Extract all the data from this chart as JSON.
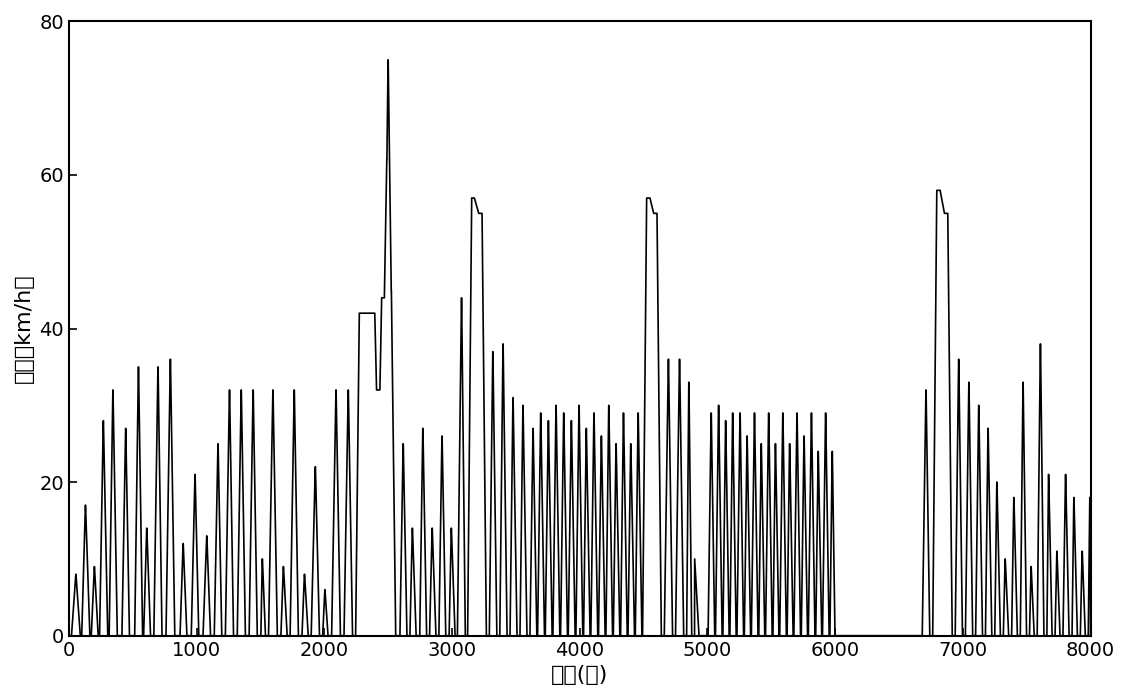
{
  "title": "",
  "xlabel": "时间(秒)",
  "ylabel": "速度（km/h）",
  "xlim": [
    0,
    8000
  ],
  "ylim": [
    0,
    80
  ],
  "xticks": [
    0,
    1000,
    2000,
    3000,
    4000,
    5000,
    6000,
    7000,
    8000
  ],
  "yticks": [
    0,
    20,
    40,
    60,
    80
  ],
  "line_color": "#000000",
  "line_width": 1.2,
  "background_color": "#ffffff",
  "figsize": [
    11.29,
    6.99
  ],
  "dpi": 100,
  "tick_fontsize": 14,
  "label_fontsize": 16
}
